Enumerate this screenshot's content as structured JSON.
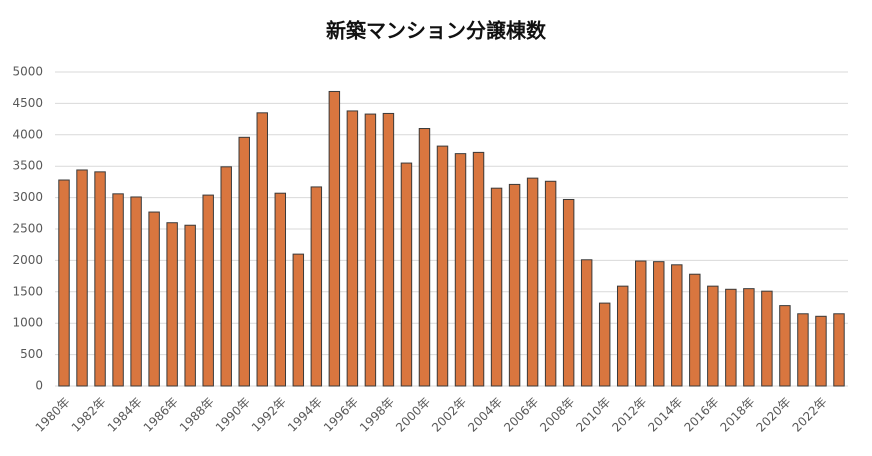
{
  "chart_data": {
    "type": "bar",
    "title": "新築マンション分譲棟数",
    "categories": [
      "1980年",
      null,
      "1982年",
      null,
      "1984年",
      null,
      "1986年",
      null,
      "1988年",
      null,
      "1990年",
      null,
      "1992年",
      null,
      "1994年",
      null,
      "1996年",
      null,
      "1998年",
      null,
      "2000年",
      null,
      "2002年",
      null,
      "2004年",
      null,
      "2006年",
      null,
      "2008年",
      null,
      "2010年",
      null,
      "2012年",
      null,
      "2014年",
      null,
      "2016年",
      null,
      "2018年",
      null,
      "2020年",
      null,
      "2022年",
      null
    ],
    "values": [
      3280,
      3440,
      3410,
      3060,
      3010,
      2770,
      2600,
      2560,
      3040,
      3490,
      3960,
      4350,
      3070,
      2100,
      3170,
      4690,
      4380,
      4330,
      4340,
      3550,
      4100,
      3820,
      3700,
      3720,
      3150,
      3210,
      3310,
      3260,
      2970,
      2010,
      1320,
      1590,
      1990,
      1980,
      1930,
      1780,
      1590,
      1540,
      1550,
      1510,
      1280,
      1150,
      1110,
      1150
    ],
    "color": "#d9763f",
    "ylim": [
      0,
      5000
    ],
    "yticks": [
      0,
      500,
      1000,
      1500,
      2000,
      2500,
      3000,
      3500,
      4000,
      4500,
      5000
    ],
    "grid": true
  }
}
